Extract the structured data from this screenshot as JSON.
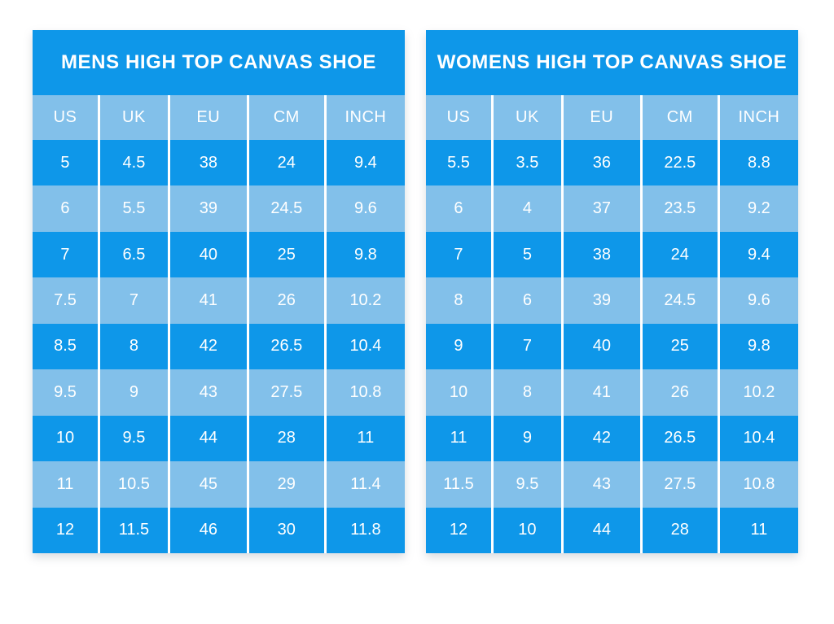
{
  "colors": {
    "page_background": "#ffffff",
    "table_blue": "#0e97e9",
    "table_light_blue": "#82c0ea",
    "divider_white": "#ffffff",
    "text_white": "#ffffff"
  },
  "chart_data": [
    {
      "type": "table",
      "title": "MENS HIGH TOP CANVAS SHOE",
      "columns": [
        "US",
        "UK",
        "EU",
        "CM",
        "INCH"
      ],
      "rows": [
        [
          "5",
          "4.5",
          "38",
          "24",
          "9.4"
        ],
        [
          "6",
          "5.5",
          "39",
          "24.5",
          "9.6"
        ],
        [
          "7",
          "6.5",
          "40",
          "25",
          "9.8"
        ],
        [
          "7.5",
          "7",
          "41",
          "26",
          "10.2"
        ],
        [
          "8.5",
          "8",
          "42",
          "26.5",
          "10.4"
        ],
        [
          "9.5",
          "9",
          "43",
          "27.5",
          "10.8"
        ],
        [
          "10",
          "9.5",
          "44",
          "28",
          "11"
        ],
        [
          "11",
          "10.5",
          "45",
          "29",
          "11.4"
        ],
        [
          "12",
          "11.5",
          "46",
          "30",
          "11.8"
        ]
      ]
    },
    {
      "type": "table",
      "title": "WOMENS HIGH TOP CANVAS SHOE",
      "columns": [
        "US",
        "UK",
        "EU",
        "CM",
        "INCH"
      ],
      "rows": [
        [
          "5.5",
          "3.5",
          "36",
          "22.5",
          "8.8"
        ],
        [
          "6",
          "4",
          "37",
          "23.5",
          "9.2"
        ],
        [
          "7",
          "5",
          "38",
          "24",
          "9.4"
        ],
        [
          "8",
          "6",
          "39",
          "24.5",
          "9.6"
        ],
        [
          "9",
          "7",
          "40",
          "25",
          "9.8"
        ],
        [
          "10",
          "8",
          "41",
          "26",
          "10.2"
        ],
        [
          "11",
          "9",
          "42",
          "26.5",
          "10.4"
        ],
        [
          "11.5",
          "9.5",
          "43",
          "27.5",
          "10.8"
        ],
        [
          "12",
          "10",
          "44",
          "28",
          "11"
        ]
      ]
    }
  ]
}
